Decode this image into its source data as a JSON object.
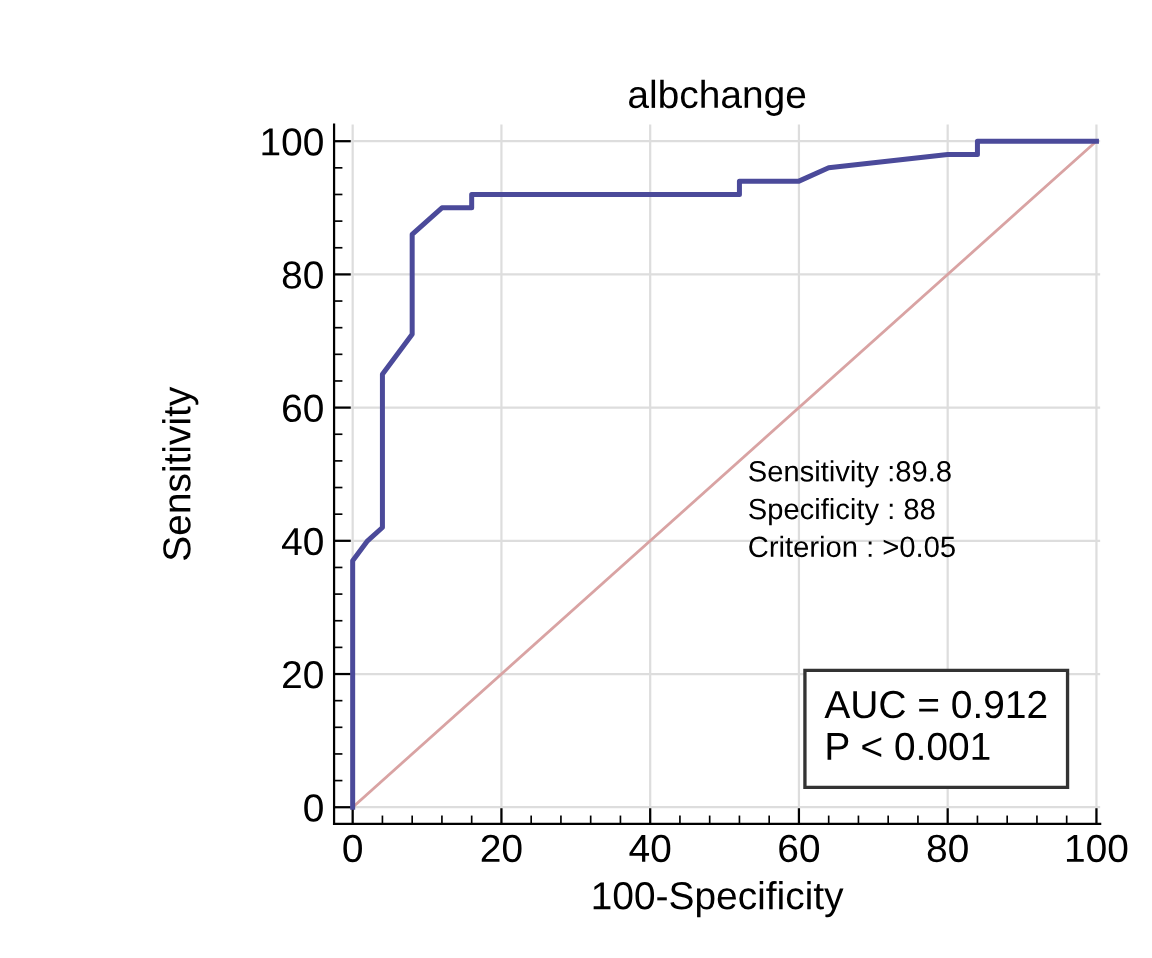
{
  "chart_data": {
    "type": "line",
    "title": "albchange",
    "xlabel": "100-Specificity",
    "ylabel": "Sensitivity",
    "series": [
      {
        "color": "#4b4a9a",
        "x": [
          0,
          0,
          2,
          4,
          4,
          6,
          8,
          8,
          10,
          12,
          16,
          16,
          52,
          52,
          60,
          64,
          80,
          84,
          84,
          100
        ],
        "values": [
          0,
          37,
          40,
          42,
          65,
          68,
          71,
          86,
          88,
          90,
          90,
          92,
          92,
          94,
          94,
          96,
          98,
          98,
          100,
          100
        ]
      },
      {
        "color": "#d9a3a3",
        "x": [
          0,
          100
        ],
        "values": [
          0,
          100
        ]
      }
    ],
    "xlim": [
      0,
      100
    ],
    "ylim": [
      0,
      100
    ],
    "xticks": [
      0,
      20,
      40,
      60,
      80,
      100
    ],
    "yticks": [
      0,
      20,
      40,
      60,
      80,
      100
    ],
    "grid": true,
    "annotations": [
      "Sensitivity :89.8\nSpecificity : 88\nCriterion : >0.05",
      "AUC = 0.912\nP < 0.001"
    ]
  }
}
